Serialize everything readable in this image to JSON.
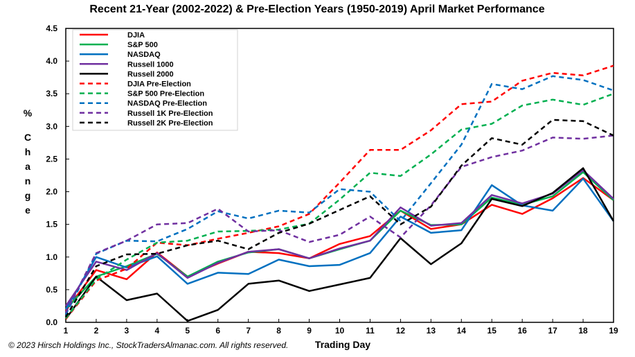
{
  "chart_data": {
    "type": "line",
    "title": "Recent 21-Year (2002-2022) & Pre-Election Years (1950-2019) April Market Performance",
    "xlabel": "Trading Day",
    "ylabel": "% Change",
    "x": [
      1,
      2,
      3,
      4,
      5,
      6,
      7,
      8,
      9,
      10,
      11,
      12,
      13,
      14,
      15,
      16,
      17,
      18,
      19
    ],
    "ylim": [
      0,
      4.5
    ],
    "yticks": [
      "0.0",
      "0.5",
      "1.0",
      "1.5",
      "2.0",
      "2.5",
      "3.0",
      "3.5",
      "4.0",
      "4.5"
    ],
    "xticks": [
      "1",
      "2",
      "3",
      "4",
      "5",
      "6",
      "7",
      "8",
      "9",
      "10",
      "11",
      "12",
      "13",
      "14",
      "15",
      "16",
      "17",
      "18",
      "19"
    ],
    "legend_position": "top-left",
    "grid": false,
    "series": [
      {
        "name": "DJIA",
        "color": "#ff0000",
        "dashed": false,
        "values": [
          0.18,
          0.8,
          0.66,
          1.07,
          0.7,
          0.9,
          1.08,
          1.06,
          0.98,
          1.2,
          1.32,
          1.71,
          1.43,
          1.5,
          1.8,
          1.66,
          1.9,
          2.21,
          1.87
        ]
      },
      {
        "name": "S&P 500",
        "color": "#00b050",
        "dashed": false,
        "values": [
          0.2,
          0.7,
          0.86,
          1.05,
          0.7,
          0.93,
          1.07,
          1.12,
          0.98,
          1.12,
          1.25,
          1.71,
          1.49,
          1.5,
          1.91,
          1.8,
          1.93,
          2.3,
          1.87
        ]
      },
      {
        "name": "NASDAQ",
        "color": "#0070c0",
        "dashed": false,
        "values": [
          0.2,
          1.0,
          0.84,
          1.01,
          0.59,
          0.76,
          0.74,
          0.96,
          0.86,
          0.88,
          1.06,
          1.62,
          1.37,
          1.41,
          2.1,
          1.79,
          1.71,
          2.2,
          1.55
        ]
      },
      {
        "name": "Russell 1000",
        "color": "#7030a0",
        "dashed": false,
        "values": [
          0.25,
          0.93,
          0.8,
          1.06,
          0.68,
          0.91,
          1.08,
          1.12,
          0.98,
          1.13,
          1.25,
          1.76,
          1.48,
          1.52,
          1.95,
          1.82,
          1.97,
          2.33,
          1.89
        ]
      },
      {
        "name": "Russell 2000",
        "color": "#000000",
        "dashed": false,
        "values": [
          0.05,
          0.7,
          0.34,
          0.44,
          0.02,
          0.19,
          0.59,
          0.64,
          0.48,
          0.58,
          0.68,
          1.29,
          0.89,
          1.21,
          1.89,
          1.78,
          1.98,
          2.36,
          1.55
        ]
      },
      {
        "name": "DJIA Pre-Election",
        "color": "#ff0000",
        "dashed": true,
        "values": [
          0.05,
          0.64,
          0.82,
          1.22,
          1.18,
          1.28,
          1.37,
          1.47,
          1.66,
          2.14,
          2.64,
          2.64,
          2.94,
          3.34,
          3.38,
          3.7,
          3.82,
          3.78,
          3.93
        ]
      },
      {
        "name": "S&P 500 Pre-Election",
        "color": "#00b050",
        "dashed": true,
        "values": [
          0.06,
          0.66,
          0.96,
          1.22,
          1.25,
          1.39,
          1.4,
          1.42,
          1.51,
          1.88,
          2.29,
          2.24,
          2.57,
          2.95,
          3.04,
          3.32,
          3.41,
          3.33,
          3.5
        ]
      },
      {
        "name": "NASDAQ Pre-Election",
        "color": "#0070c0",
        "dashed": true,
        "values": [
          0.12,
          1.05,
          1.25,
          1.24,
          1.43,
          1.7,
          1.59,
          1.71,
          1.68,
          2.04,
          2.0,
          1.55,
          2.13,
          2.72,
          3.65,
          3.57,
          3.77,
          3.71,
          3.55
        ]
      },
      {
        "name": "Russell 1K Pre-Election",
        "color": "#7030a0",
        "dashed": true,
        "values": [
          0.15,
          1.06,
          1.25,
          1.5,
          1.52,
          1.74,
          1.39,
          1.41,
          1.23,
          1.34,
          1.62,
          1.3,
          1.79,
          2.38,
          2.53,
          2.63,
          2.83,
          2.81,
          2.86
        ]
      },
      {
        "name": "Russell 2K Pre-Election",
        "color": "#000000",
        "dashed": true,
        "values": [
          0.08,
          0.86,
          1.04,
          1.05,
          1.18,
          1.25,
          1.12,
          1.37,
          1.51,
          1.72,
          1.93,
          1.5,
          1.77,
          2.4,
          2.82,
          2.72,
          3.1,
          3.08,
          2.86
        ]
      }
    ],
    "copyright": "© 2023 Hirsch Holdings Inc., StockTradersAlmanac.com. All rights reserved."
  }
}
